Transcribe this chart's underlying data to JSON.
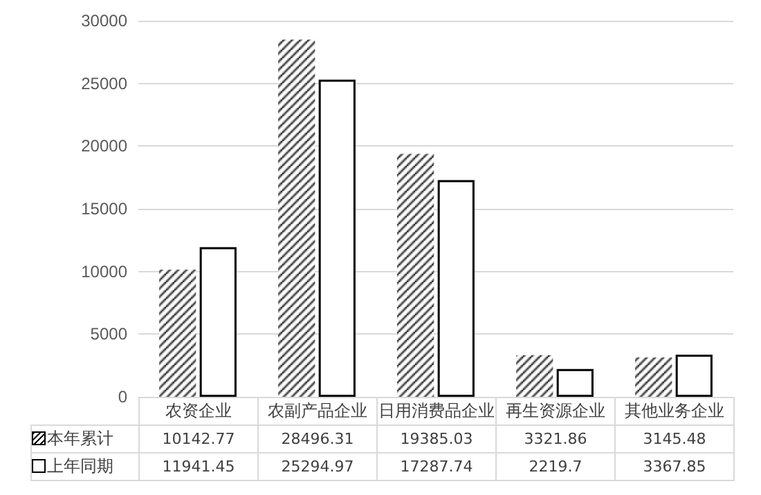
{
  "chart_data": {
    "type": "bar",
    "categories": [
      "农资企业",
      "农副产品企业",
      "日用消费品企业",
      "再生资源企业",
      "其他业务企业"
    ],
    "series": [
      {
        "name": "本年累计",
        "color": "#000000",
        "values": [
          10142.77,
          28496.31,
          19385.03,
          3321.86,
          3145.48
        ]
      },
      {
        "name": "上年同期",
        "color": "#ffffff",
        "values": [
          11941.45,
          25294.97,
          17287.74,
          2219.7,
          3367.85
        ]
      }
    ],
    "ylim": [
      0,
      30000
    ],
    "yticks": [
      0,
      5000,
      10000,
      15000,
      20000,
      25000,
      30000
    ],
    "grid": "y",
    "legend": "bottom",
    "data_labels": true
  }
}
